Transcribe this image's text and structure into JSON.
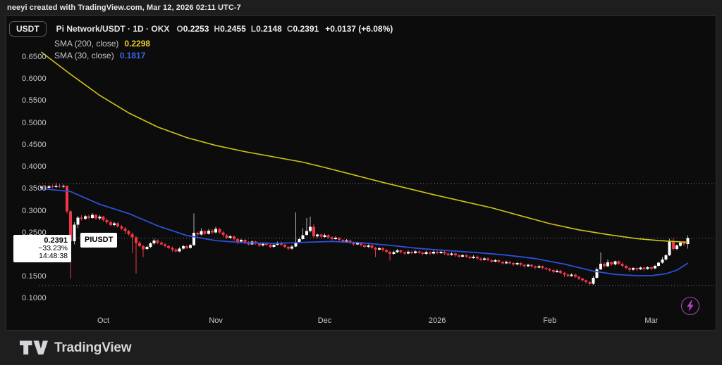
{
  "attribution": "neeyi created with TradingView.com, Mar 12, 2026 02:11 UTC-7",
  "toolbar": {
    "currency_label": "USDT"
  },
  "legend": {
    "symbol_title": "Pi Network/USDT · 1D · OKX",
    "ohlc": [
      {
        "label": "O",
        "value": "0.2253"
      },
      {
        "label": "H",
        "value": "0.2455"
      },
      {
        "label": "L",
        "value": "0.2148"
      },
      {
        "label": "C",
        "value": "0.2391"
      }
    ],
    "change": "+0.0137 (+6.08%)",
    "indicators": [
      {
        "label": "SMA (200, close)",
        "value": "0.2298",
        "color": "#efce2a"
      },
      {
        "label": "SMA (30, close)",
        "value": "0.1817",
        "color": "#3c64e8"
      }
    ]
  },
  "price_label": {
    "price": "0.2391",
    "change_pct": "−33.23%",
    "countdown": "14:48:38",
    "ticker": "PIUSDT"
  },
  "footer": {
    "brand": "TradingView"
  },
  "chart_data": {
    "type": "candlestick",
    "title": "Pi Network/USDT",
    "interval": "1D",
    "exchange": "OKX",
    "start_date": "2025-09-14",
    "end_date": "2026-03-11",
    "last": {
      "open": 0.2253,
      "high": 0.2455,
      "low": 0.2148,
      "close": 0.2391,
      "change": "+0.0137 (+6.08%)"
    },
    "y_ticks": [
      0.65,
      0.6,
      0.55,
      0.5,
      0.45,
      0.4,
      0.35,
      0.3,
      0.25,
      0.2,
      0.15,
      0.1
    ],
    "time_labels": [
      {
        "label": "Oct",
        "day": 17
      },
      {
        "label": "Nov",
        "day": 48
      },
      {
        "label": "Dec",
        "day": 78
      },
      {
        "label": "2026",
        "day": 109
      },
      {
        "label": "Feb",
        "day": 140
      },
      {
        "label": "Mar",
        "day": 168
      }
    ],
    "colors": {
      "up": "#ffffff",
      "up_wick": "#aeb1b8",
      "down": "#f23645",
      "grid_dotted": "#8f929c"
    },
    "sma200": {
      "label": "SMA (200, close)",
      "period": 200,
      "last": 0.2298,
      "color": "#d2c216",
      "points": [
        [
          0,
          0.662
        ],
        [
          8,
          0.612
        ],
        [
          16,
          0.564
        ],
        [
          24,
          0.524
        ],
        [
          32,
          0.492
        ],
        [
          40,
          0.468
        ],
        [
          48,
          0.45
        ],
        [
          56,
          0.436
        ],
        [
          64,
          0.424
        ],
        [
          72,
          0.412
        ],
        [
          78,
          0.4
        ],
        [
          86,
          0.383
        ],
        [
          94,
          0.366
        ],
        [
          100,
          0.354
        ],
        [
          108,
          0.338
        ],
        [
          116,
          0.323
        ],
        [
          124,
          0.308
        ],
        [
          132,
          0.29
        ],
        [
          140,
          0.272
        ],
        [
          148,
          0.258
        ],
        [
          156,
          0.247
        ],
        [
          164,
          0.238
        ],
        [
          170,
          0.2335
        ],
        [
          174,
          0.2315
        ],
        [
          178,
          0.2298
        ]
      ]
    },
    "sma30": {
      "label": "SMA (30, close)",
      "period": 30,
      "last": 0.1817,
      "color": "#2b50d8",
      "points": [
        [
          0,
          0.352
        ],
        [
          8,
          0.345
        ],
        [
          16,
          0.316
        ],
        [
          24,
          0.295
        ],
        [
          32,
          0.267
        ],
        [
          40,
          0.245
        ],
        [
          48,
          0.2335
        ],
        [
          56,
          0.2285
        ],
        [
          64,
          0.227
        ],
        [
          72,
          0.2295
        ],
        [
          80,
          0.2315
        ],
        [
          88,
          0.2285
        ],
        [
          96,
          0.2225
        ],
        [
          104,
          0.2155
        ],
        [
          112,
          0.2105
        ],
        [
          120,
          0.206
        ],
        [
          128,
          0.2005
        ],
        [
          136,
          0.1925
        ],
        [
          144,
          0.18
        ],
        [
          152,
          0.164
        ],
        [
          158,
          0.1565
        ],
        [
          164,
          0.1535
        ],
        [
          168,
          0.1535
        ],
        [
          172,
          0.158
        ],
        [
          175,
          0.166
        ],
        [
          178,
          0.1817
        ]
      ]
    },
    "candles": [
      [
        0.353,
        0.358,
        0.349,
        0.356
      ],
      [
        0.356,
        0.359,
        0.352,
        0.354
      ],
      [
        0.354,
        0.36,
        0.352,
        0.357
      ],
      [
        0.357,
        0.361,
        0.353,
        0.355
      ],
      [
        0.355,
        0.363,
        0.354,
        0.358
      ],
      [
        0.358,
        0.362,
        0.354,
        0.356
      ],
      [
        0.356,
        0.361,
        0.353,
        0.358
      ],
      [
        0.358,
        0.36,
        0.295,
        0.3
      ],
      [
        0.3,
        0.303,
        0.147,
        0.232
      ],
      [
        0.232,
        0.275,
        0.225,
        0.27
      ],
      [
        0.27,
        0.29,
        0.262,
        0.286
      ],
      [
        0.286,
        0.291,
        0.279,
        0.283
      ],
      [
        0.283,
        0.292,
        0.28,
        0.289
      ],
      [
        0.289,
        0.293,
        0.282,
        0.285
      ],
      [
        0.285,
        0.296,
        0.283,
        0.292
      ],
      [
        0.292,
        0.294,
        0.281,
        0.284
      ],
      [
        0.284,
        0.291,
        0.28,
        0.288
      ],
      [
        0.288,
        0.29,
        0.277,
        0.28
      ],
      [
        0.28,
        0.284,
        0.272,
        0.275
      ],
      [
        0.275,
        0.279,
        0.266,
        0.269
      ],
      [
        0.269,
        0.276,
        0.266,
        0.273
      ],
      [
        0.273,
        0.275,
        0.263,
        0.266
      ],
      [
        0.266,
        0.269,
        0.258,
        0.261
      ],
      [
        0.261,
        0.264,
        0.248,
        0.255
      ],
      [
        0.255,
        0.258,
        0.245,
        0.248
      ],
      [
        0.248,
        0.252,
        0.205,
        0.241
      ],
      [
        0.241,
        0.244,
        0.158,
        0.228
      ],
      [
        0.228,
        0.232,
        0.218,
        0.221
      ],
      [
        0.221,
        0.224,
        0.196,
        0.214
      ],
      [
        0.214,
        0.222,
        0.211,
        0.219
      ],
      [
        0.219,
        0.23,
        0.216,
        0.227
      ],
      [
        0.227,
        0.238,
        0.224,
        0.234
      ],
      [
        0.234,
        0.236,
        0.226,
        0.229
      ],
      [
        0.229,
        0.232,
        0.222,
        0.225
      ],
      [
        0.225,
        0.228,
        0.218,
        0.221
      ],
      [
        0.221,
        0.224,
        0.214,
        0.217
      ],
      [
        0.217,
        0.22,
        0.208,
        0.213
      ],
      [
        0.213,
        0.216,
        0.206,
        0.209
      ],
      [
        0.209,
        0.218,
        0.207,
        0.215
      ],
      [
        0.215,
        0.224,
        0.213,
        0.221
      ],
      [
        0.221,
        0.223,
        0.214,
        0.217
      ],
      [
        0.217,
        0.226,
        0.215,
        0.223
      ],
      [
        0.223,
        0.295,
        0.221,
        0.251
      ],
      [
        0.251,
        0.254,
        0.244,
        0.247
      ],
      [
        0.247,
        0.262,
        0.245,
        0.255
      ],
      [
        0.255,
        0.258,
        0.246,
        0.249
      ],
      [
        0.249,
        0.26,
        0.247,
        0.256
      ],
      [
        0.256,
        0.259,
        0.248,
        0.252
      ],
      [
        0.252,
        0.265,
        0.25,
        0.26
      ],
      [
        0.26,
        0.262,
        0.249,
        0.252
      ],
      [
        0.252,
        0.255,
        0.242,
        0.246
      ],
      [
        0.246,
        0.249,
        0.237,
        0.24
      ],
      [
        0.24,
        0.246,
        0.237,
        0.243
      ],
      [
        0.243,
        0.245,
        0.233,
        0.237
      ],
      [
        0.237,
        0.239,
        0.225,
        0.231
      ],
      [
        0.231,
        0.238,
        0.228,
        0.235
      ],
      [
        0.235,
        0.237,
        0.226,
        0.229
      ],
      [
        0.229,
        0.232,
        0.222,
        0.225
      ],
      [
        0.225,
        0.234,
        0.223,
        0.231
      ],
      [
        0.231,
        0.233,
        0.224,
        0.227
      ],
      [
        0.227,
        0.229,
        0.219,
        0.222
      ],
      [
        0.222,
        0.23,
        0.22,
        0.228
      ],
      [
        0.228,
        0.23,
        0.221,
        0.224
      ],
      [
        0.224,
        0.226,
        0.216,
        0.219
      ],
      [
        0.219,
        0.227,
        0.217,
        0.224
      ],
      [
        0.224,
        0.231,
        0.222,
        0.229
      ],
      [
        0.229,
        0.231,
        0.221,
        0.224
      ],
      [
        0.224,
        0.226,
        0.216,
        0.219
      ],
      [
        0.219,
        0.221,
        0.212,
        0.215
      ],
      [
        0.215,
        0.223,
        0.213,
        0.22
      ],
      [
        0.22,
        0.298,
        0.218,
        0.229
      ],
      [
        0.229,
        0.241,
        0.227,
        0.237
      ],
      [
        0.237,
        0.262,
        0.235,
        0.246
      ],
      [
        0.246,
        0.285,
        0.244,
        0.255
      ],
      [
        0.255,
        0.288,
        0.252,
        0.265
      ],
      [
        0.265,
        0.271,
        0.24,
        0.243
      ],
      [
        0.243,
        0.25,
        0.239,
        0.247
      ],
      [
        0.247,
        0.249,
        0.239,
        0.242
      ],
      [
        0.242,
        0.25,
        0.24,
        0.246
      ],
      [
        0.246,
        0.248,
        0.238,
        0.241
      ],
      [
        0.241,
        0.243,
        0.234,
        0.237
      ],
      [
        0.237,
        0.243,
        0.235,
        0.24
      ],
      [
        0.24,
        0.242,
        0.232,
        0.235
      ],
      [
        0.235,
        0.237,
        0.227,
        0.23
      ],
      [
        0.23,
        0.237,
        0.228,
        0.234
      ],
      [
        0.234,
        0.236,
        0.226,
        0.229
      ],
      [
        0.229,
        0.231,
        0.222,
        0.225
      ],
      [
        0.225,
        0.231,
        0.223,
        0.228
      ],
      [
        0.228,
        0.23,
        0.22,
        0.223
      ],
      [
        0.223,
        0.225,
        0.216,
        0.219
      ],
      [
        0.219,
        0.225,
        0.217,
        0.222
      ],
      [
        0.222,
        0.224,
        0.214,
        0.217
      ],
      [
        0.217,
        0.219,
        0.196,
        0.213
      ],
      [
        0.213,
        0.219,
        0.211,
        0.216
      ],
      [
        0.216,
        0.218,
        0.209,
        0.212
      ],
      [
        0.212,
        0.214,
        0.205,
        0.208
      ],
      [
        0.208,
        0.21,
        0.188,
        0.203
      ],
      [
        0.203,
        0.21,
        0.201,
        0.207
      ],
      [
        0.207,
        0.214,
        0.205,
        0.211
      ],
      [
        0.211,
        0.213,
        0.204,
        0.207
      ],
      [
        0.207,
        0.209,
        0.201,
        0.204
      ],
      [
        0.204,
        0.211,
        0.202,
        0.208
      ],
      [
        0.208,
        0.21,
        0.202,
        0.205
      ],
      [
        0.205,
        0.212,
        0.203,
        0.209
      ],
      [
        0.209,
        0.211,
        0.203,
        0.206
      ],
      [
        0.206,
        0.208,
        0.2,
        0.203
      ],
      [
        0.203,
        0.21,
        0.201,
        0.207
      ],
      [
        0.207,
        0.209,
        0.201,
        0.204
      ],
      [
        0.204,
        0.211,
        0.202,
        0.208
      ],
      [
        0.208,
        0.21,
        0.202,
        0.205
      ],
      [
        0.205,
        0.211,
        0.203,
        0.208
      ],
      [
        0.208,
        0.21,
        0.201,
        0.204
      ],
      [
        0.204,
        0.206,
        0.198,
        0.201
      ],
      [
        0.201,
        0.207,
        0.199,
        0.204
      ],
      [
        0.204,
        0.206,
        0.197,
        0.2
      ],
      [
        0.2,
        0.202,
        0.194,
        0.197
      ],
      [
        0.197,
        0.203,
        0.195,
        0.2
      ],
      [
        0.2,
        0.202,
        0.194,
        0.197
      ],
      [
        0.197,
        0.199,
        0.191,
        0.194
      ],
      [
        0.194,
        0.2,
        0.192,
        0.197
      ],
      [
        0.197,
        0.199,
        0.19,
        0.193
      ],
      [
        0.193,
        0.195,
        0.187,
        0.19
      ],
      [
        0.19,
        0.196,
        0.188,
        0.193
      ],
      [
        0.193,
        0.195,
        0.186,
        0.189
      ],
      [
        0.189,
        0.191,
        0.183,
        0.186
      ],
      [
        0.186,
        0.192,
        0.184,
        0.189
      ],
      [
        0.189,
        0.191,
        0.182,
        0.185
      ],
      [
        0.185,
        0.187,
        0.179,
        0.182
      ],
      [
        0.182,
        0.188,
        0.18,
        0.185
      ],
      [
        0.185,
        0.187,
        0.179,
        0.182
      ],
      [
        0.182,
        0.184,
        0.176,
        0.179
      ],
      [
        0.179,
        0.185,
        0.177,
        0.182
      ],
      [
        0.182,
        0.184,
        0.175,
        0.178
      ],
      [
        0.178,
        0.18,
        0.172,
        0.175
      ],
      [
        0.175,
        0.181,
        0.173,
        0.178
      ],
      [
        0.178,
        0.18,
        0.172,
        0.175
      ],
      [
        0.175,
        0.177,
        0.169,
        0.172
      ],
      [
        0.172,
        0.178,
        0.17,
        0.175
      ],
      [
        0.175,
        0.177,
        0.168,
        0.171
      ],
      [
        0.171,
        0.173,
        0.166,
        0.169
      ],
      [
        0.169,
        0.171,
        0.163,
        0.166
      ],
      [
        0.166,
        0.168,
        0.159,
        0.162
      ],
      [
        0.162,
        0.168,
        0.16,
        0.165
      ],
      [
        0.165,
        0.167,
        0.157,
        0.16
      ],
      [
        0.16,
        0.162,
        0.15,
        0.156
      ],
      [
        0.156,
        0.158,
        0.15,
        0.153
      ],
      [
        0.153,
        0.159,
        0.151,
        0.156
      ],
      [
        0.156,
        0.158,
        0.148,
        0.151
      ],
      [
        0.151,
        0.153,
        0.144,
        0.147
      ],
      [
        0.147,
        0.149,
        0.14,
        0.143
      ],
      [
        0.143,
        0.145,
        0.135,
        0.139
      ],
      [
        0.139,
        0.141,
        0.131,
        0.135
      ],
      [
        0.135,
        0.152,
        0.133,
        0.149
      ],
      [
        0.149,
        0.172,
        0.147,
        0.168
      ],
      [
        0.168,
        0.206,
        0.166,
        0.181
      ],
      [
        0.181,
        0.184,
        0.172,
        0.175
      ],
      [
        0.175,
        0.19,
        0.173,
        0.184
      ],
      [
        0.184,
        0.186,
        0.176,
        0.179
      ],
      [
        0.179,
        0.188,
        0.177,
        0.186
      ],
      [
        0.186,
        0.188,
        0.178,
        0.181
      ],
      [
        0.181,
        0.183,
        0.173,
        0.176
      ],
      [
        0.176,
        0.178,
        0.168,
        0.171
      ],
      [
        0.171,
        0.173,
        0.162,
        0.167
      ],
      [
        0.167,
        0.173,
        0.165,
        0.171
      ],
      [
        0.171,
        0.172,
        0.164,
        0.168
      ],
      [
        0.168,
        0.174,
        0.166,
        0.172
      ],
      [
        0.172,
        0.173,
        0.165,
        0.169
      ],
      [
        0.169,
        0.175,
        0.167,
        0.173
      ],
      [
        0.173,
        0.174,
        0.166,
        0.17
      ],
      [
        0.17,
        0.178,
        0.168,
        0.176
      ],
      [
        0.176,
        0.185,
        0.174,
        0.183
      ],
      [
        0.183,
        0.196,
        0.181,
        0.19
      ],
      [
        0.19,
        0.203,
        0.188,
        0.2
      ],
      [
        0.2,
        0.238,
        0.198,
        0.232
      ],
      [
        0.232,
        0.24,
        0.21,
        0.214
      ],
      [
        0.214,
        0.225,
        0.211,
        0.222
      ],
      [
        0.222,
        0.231,
        0.219,
        0.229
      ],
      [
        0.229,
        0.232,
        0.221,
        0.2253
      ],
      [
        0.2253,
        0.2455,
        0.2148,
        0.2391
      ]
    ]
  }
}
